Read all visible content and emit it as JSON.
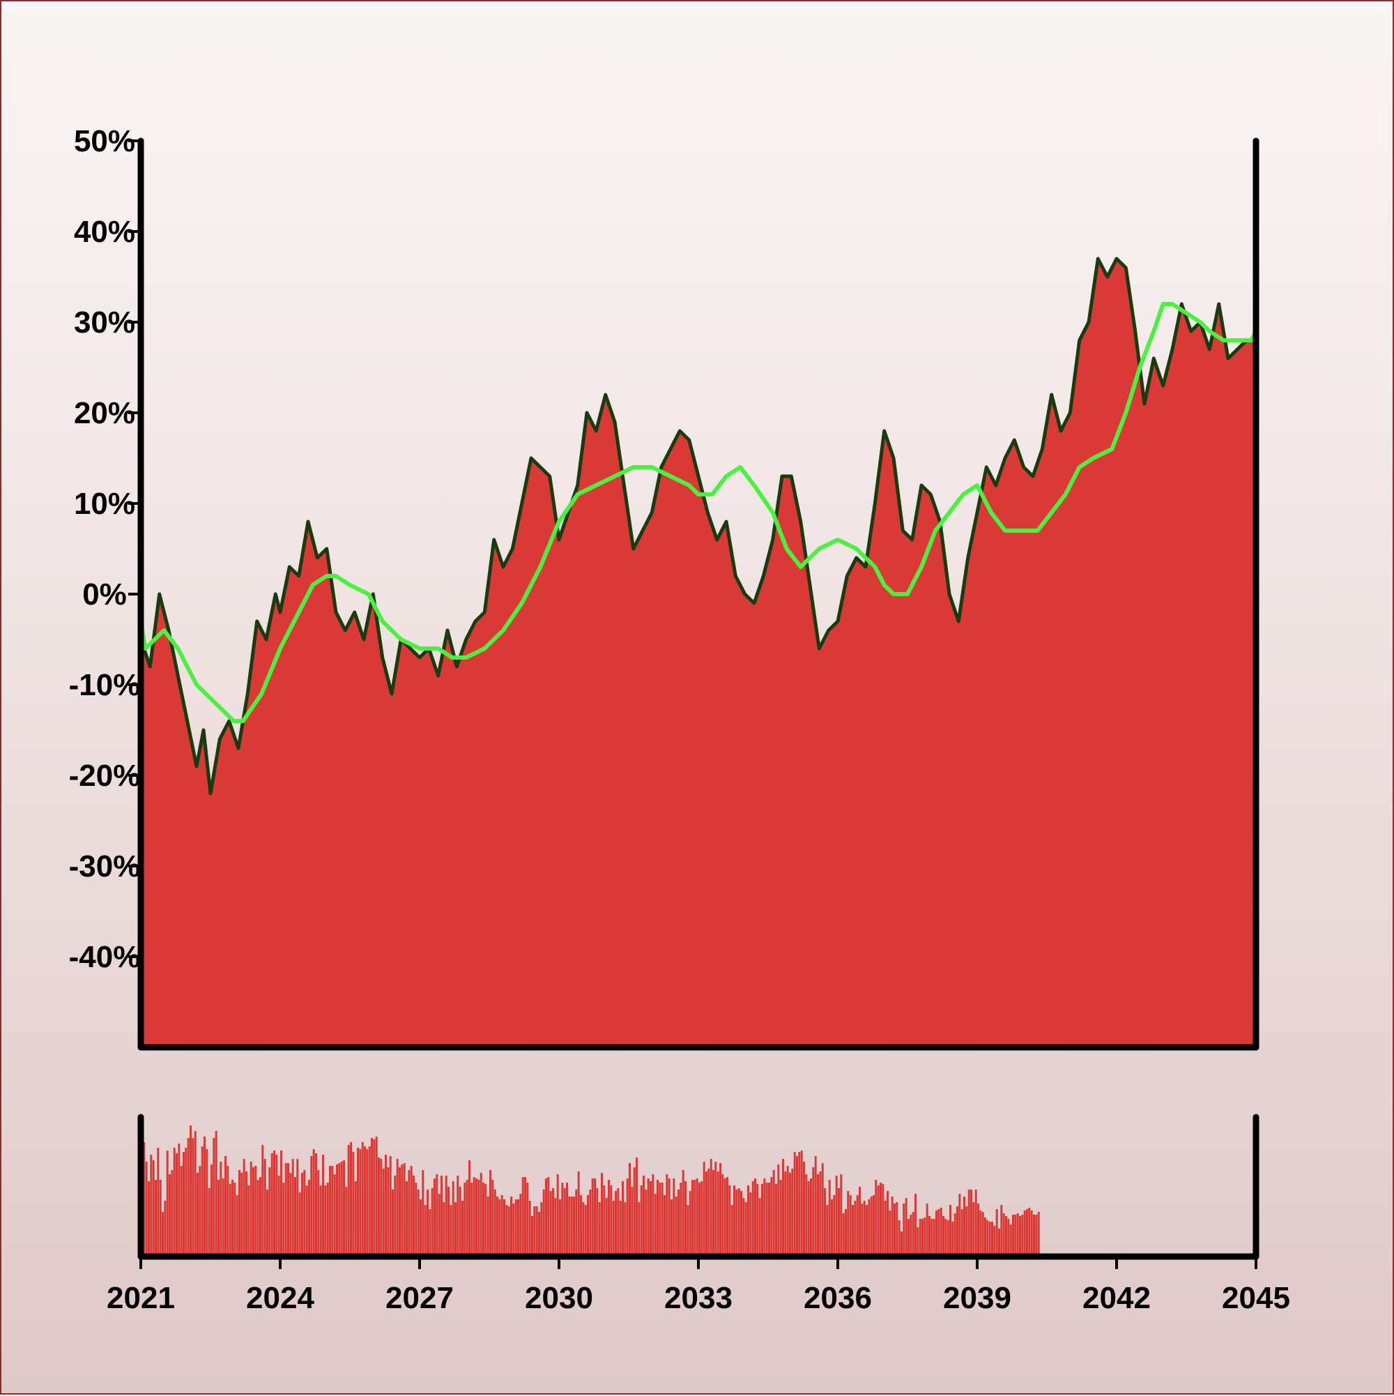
{
  "chart_data": [
    {
      "type": "area",
      "title": "",
      "xlabel": "",
      "ylabel": "",
      "xlim": [
        2021,
        2045
      ],
      "ylim": [
        -50,
        50
      ],
      "y_ticks": [
        50,
        40,
        30,
        20,
        10,
        0,
        -10,
        -20,
        -30,
        -40
      ],
      "y_tick_labels": [
        "50%",
        "40%",
        "30%",
        "20%",
        "10%",
        "0%",
        "-10%",
        "-20%",
        "-30%",
        "-40%"
      ],
      "grid": false,
      "legend": "none",
      "colors": {
        "area_fill": "#d93a35",
        "area_edge": "#1a3a10",
        "moving_average": "#4cf040",
        "axis": "#000000"
      },
      "series": [
        {
          "style": "area",
          "x": [
            2021.0,
            2021.2,
            2021.4,
            2021.6,
            2021.8,
            2022.0,
            2022.2,
            2022.35,
            2022.5,
            2022.7,
            2022.9,
            2023.1,
            2023.3,
            2023.5,
            2023.7,
            2023.9,
            2024.0,
            2024.2,
            2024.4,
            2024.6,
            2024.8,
            2025.0,
            2025.2,
            2025.4,
            2025.6,
            2025.8,
            2026.0,
            2026.2,
            2026.4,
            2026.6,
            2026.8,
            2027.0,
            2027.2,
            2027.4,
            2027.6,
            2027.8,
            2028.0,
            2028.2,
            2028.4,
            2028.6,
            2028.8,
            2029.0,
            2029.2,
            2029.4,
            2029.6,
            2029.8,
            2030.0,
            2030.2,
            2030.4,
            2030.6,
            2030.8,
            2031.0,
            2031.2,
            2031.4,
            2031.6,
            2031.8,
            2032.0,
            2032.2,
            2032.4,
            2032.6,
            2032.8,
            2033.0,
            2033.2,
            2033.4,
            2033.6,
            2033.8,
            2034.0,
            2034.2,
            2034.4,
            2034.6,
            2034.8,
            2035.0,
            2035.2,
            2035.4,
            2035.6,
            2035.8,
            2036.0,
            2036.2,
            2036.4,
            2036.6,
            2036.8,
            2037.0,
            2037.2,
            2037.4,
            2037.6,
            2037.8,
            2038.0,
            2038.2,
            2038.4,
            2038.6,
            2038.8,
            2039.0,
            2039.2,
            2039.4,
            2039.6,
            2039.8,
            2040.0,
            2040.2,
            2040.4,
            2040.6,
            2040.8,
            2041.0,
            2041.2,
            2041.4,
            2041.6,
            2041.8,
            2042.0,
            2042.2,
            2042.4,
            2042.6,
            2042.8,
            2043.0,
            2043.2,
            2043.4,
            2043.6,
            2043.8,
            2044.0,
            2044.2,
            2044.4,
            2044.6,
            2044.8,
            2045.0
          ],
          "values": [
            -5,
            -8,
            0,
            -4,
            -9,
            -14,
            -19,
            -15,
            -22,
            -16,
            -14,
            -17,
            -11,
            -3,
            -5,
            0,
            -2,
            3,
            2,
            8,
            4,
            5,
            -2,
            -4,
            -2,
            -5,
            0,
            -7,
            -11,
            -5,
            -6,
            -7,
            -6,
            -9,
            -4,
            -8,
            -5,
            -3,
            -2,
            6,
            3,
            5,
            10,
            15,
            14,
            13,
            6,
            9,
            12,
            20,
            18,
            22,
            19,
            12,
            5,
            7,
            9,
            14,
            16,
            18,
            17,
            13,
            9,
            6,
            8,
            2,
            0,
            -1,
            2,
            6,
            13,
            13,
            8,
            1,
            -6,
            -4,
            -3,
            2,
            4,
            3,
            10,
            18,
            15,
            7,
            6,
            12,
            11,
            8,
            0,
            -3,
            4,
            9,
            14,
            12,
            15,
            17,
            14,
            13,
            16,
            22,
            18,
            20,
            28,
            30,
            37,
            35,
            37,
            36,
            29,
            21,
            26,
            23,
            27,
            32,
            29,
            30,
            27,
            32,
            26,
            27,
            28,
            28
          ]
        },
        {
          "style": "line",
          "x": [
            2021.0,
            2021.1,
            2021.3,
            2021.5,
            2021.8,
            2022.2,
            2022.6,
            2023.0,
            2023.2,
            2023.6,
            2024.0,
            2024.4,
            2024.7,
            2025.0,
            2025.2,
            2025.5,
            2025.9,
            2026.2,
            2026.6,
            2027.0,
            2027.4,
            2027.7,
            2028.0,
            2028.4,
            2028.8,
            2029.2,
            2029.6,
            2030.0,
            2030.4,
            2030.8,
            2031.2,
            2031.6,
            2032.0,
            2032.4,
            2032.8,
            2033.0,
            2033.3,
            2033.6,
            2033.9,
            2034.2,
            2034.6,
            2034.9,
            2035.2,
            2035.6,
            2036.0,
            2036.4,
            2036.8,
            2037.0,
            2037.2,
            2037.5,
            2037.8,
            2038.1,
            2038.4,
            2038.7,
            2039.0,
            2039.3,
            2039.6,
            2040.0,
            2040.3,
            2040.6,
            2040.9,
            2041.2,
            2041.5,
            2041.9,
            2042.2,
            2042.5,
            2042.8,
            2043.0,
            2043.2,
            2043.5,
            2043.8,
            2044.0,
            2044.3,
            2044.6,
            2044.9,
            2045.0
          ],
          "values": [
            -3,
            -6,
            -5,
            -4,
            -6,
            -10,
            -12,
            -14,
            -14,
            -11,
            -6,
            -2,
            1,
            2,
            2,
            1,
            0,
            -3,
            -5,
            -6,
            -6,
            -7,
            -7,
            -6,
            -4,
            -1,
            3,
            8,
            11,
            12,
            13,
            14,
            14,
            13,
            12,
            11,
            11,
            13,
            14,
            12,
            9,
            5,
            3,
            5,
            6,
            5,
            3,
            1,
            0,
            0,
            3,
            7,
            9,
            11,
            12,
            9,
            7,
            7,
            7,
            9,
            11,
            14,
            15,
            16,
            20,
            25,
            29,
            32,
            32,
            31,
            30,
            29,
            28,
            28,
            28,
            29
          ]
        }
      ]
    },
    {
      "type": "bar",
      "title": "",
      "xlabel": "",
      "ylabel": "",
      "xlim": [
        2021,
        2045
      ],
      "x_ticks": [
        2021,
        2024,
        2027,
        2030,
        2033,
        2036,
        2039,
        2042,
        2045
      ],
      "x_tick_labels": [
        "2021",
        "2024",
        "2027",
        "2030",
        "2033",
        "2036",
        "2039",
        "2042",
        "2045"
      ],
      "grid": false,
      "legend": "none",
      "colors": {
        "bar_fill": "#d93a35",
        "axis": "#000000"
      },
      "x_step": 0.05,
      "values": [
        88,
        82,
        68,
        54,
        73,
        69,
        55,
        78,
        55,
        32,
        40,
        76,
        59,
        62,
        78,
        74,
        81,
        65,
        75,
        78,
        85,
        94,
        85,
        90,
        60,
        65,
        79,
        86,
        77,
        49,
        66,
        85,
        90,
        55,
        68,
        56,
        72,
        65,
        52,
        55,
        53,
        44,
        62,
        60,
        70,
        61,
        51,
        68,
        64,
        65,
        55,
        57,
        80,
        70,
        48,
        64,
        74,
        76,
        73,
        58,
        76,
        53,
        67,
        67,
        60,
        70,
        57,
        70,
        46,
        60,
        62,
        51,
        55,
        72,
        77,
        74,
        62,
        51,
        73,
        51,
        53,
        65,
        65,
        59,
        66,
        67,
        68,
        69,
        50,
        80,
        82,
        75,
        54,
        78,
        77,
        82,
        79,
        77,
        79,
        85,
        84,
        86,
        71,
        70,
        63,
        73,
        64,
        72,
        48,
        58,
        70,
        64,
        66,
        67,
        54,
        62,
        65,
        58,
        53,
        48,
        41,
        62,
        37,
        48,
        34,
        49,
        56,
        59,
        45,
        58,
        39,
        58,
        50,
        37,
        54,
        39,
        58,
        50,
        40,
        53,
        55,
        69,
        53,
        57,
        56,
        55,
        60,
        53,
        52,
        43,
        62,
        55,
        48,
        43,
        41,
        44,
        41,
        37,
        36,
        43,
        38,
        41,
        41,
        45,
        57,
        57,
        53,
        40,
        29,
        36,
        36,
        32,
        39,
        48,
        56,
        57,
        47,
        49,
        42,
        59,
        41,
        53,
        49,
        53,
        43,
        43,
        43,
        48,
        61,
        44,
        39,
        37,
        44,
        48,
        56,
        56,
        49,
        39,
        60,
        51,
        42,
        55,
        51,
        40,
        47,
        49,
        40,
        54,
        39,
        56,
        67,
        50,
        64,
        71,
        39,
        51,
        58,
        48,
        56,
        54,
        59,
        45,
        55,
        53,
        53,
        44,
        59,
        56,
        41,
        56,
        43,
        48,
        53,
        62,
        54,
        37,
        47,
        55,
        55,
        56,
        53,
        54,
        68,
        61,
        63,
        70,
        62,
        68,
        61,
        67,
        59,
        56,
        57,
        51,
        37,
        51,
        48,
        49,
        47,
        42,
        39,
        51,
        46,
        54,
        56,
        52,
        42,
        52,
        56,
        53,
        53,
        57,
        62,
        52,
        66,
        55,
        70,
        61,
        65,
        60,
        63,
        75,
        72,
        75,
        76,
        68,
        59,
        54,
        56,
        64,
        72,
        59,
        61,
        67,
        49,
        37,
        55,
        41,
        44,
        58,
        49,
        59,
        31,
        34,
        47,
        44,
        37,
        40,
        44,
        50,
        38,
        40,
        37,
        41,
        43,
        44,
        55,
        51,
        53,
        52,
        40,
        47,
        33,
        43,
        38,
        39,
        26,
        18,
        38,
        42,
        27,
        30,
        32,
        45,
        21,
        27,
        27,
        28,
        38,
        29,
        27,
        27,
        33,
        34,
        35,
        29,
        27,
        26,
        37,
        25,
        31,
        36,
        45,
        34,
        43,
        36,
        48,
        48,
        39,
        48,
        38,
        33,
        32,
        28,
        26,
        25,
        25,
        22,
        34,
        20,
        37,
        31,
        29,
        27,
        23,
        30,
        30,
        31,
        29,
        30,
        33,
        34,
        35,
        33,
        30,
        30,
        32
      ]
    }
  ]
}
